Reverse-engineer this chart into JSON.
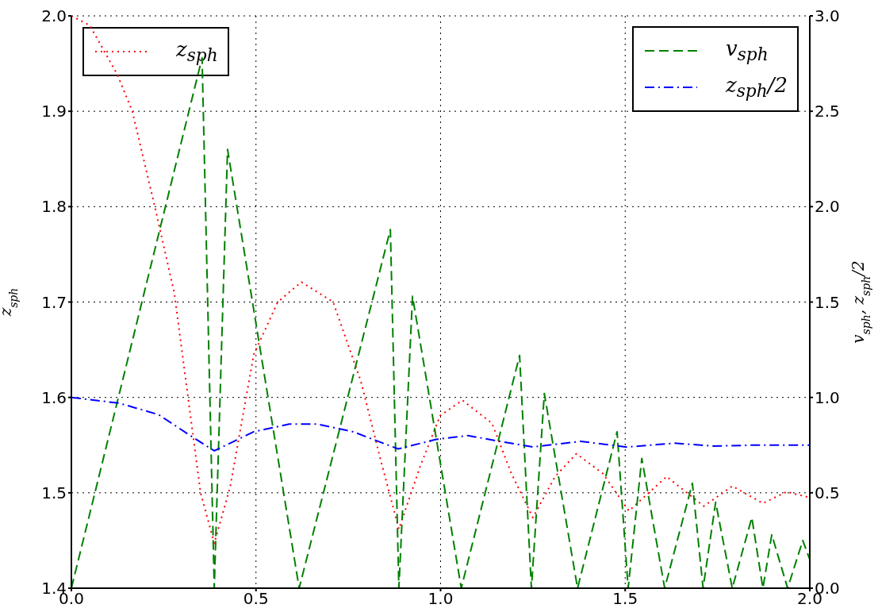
{
  "chart_data": {
    "type": "line",
    "ylabel": "z$_{sph}$",
    "y2label": "v$_{sph}$, z$_{sph}$/2",
    "xlim": [
      0,
      2
    ],
    "xticks": [
      {
        "value": 0,
        "label": "0.0"
      },
      0.5,
      {
        "value": 1,
        "label": "1.0"
      },
      1.5,
      {
        "value": 2,
        "label": "2.0"
      }
    ],
    "ylim": [
      1.4,
      2.0
    ],
    "yticks": [
      1.4,
      1.5,
      1.6,
      1.7,
      1.8,
      1.9,
      {
        "value": 2,
        "label": "2.0"
      }
    ],
    "y2lim": [
      0,
      3
    ],
    "y2ticks": [
      {
        "value": 0,
        "label": "0.0"
      },
      0.5,
      {
        "value": 1,
        "label": "1.0"
      },
      1.5,
      {
        "value": 2,
        "label": "2.0"
      },
      2.5,
      {
        "value": 3,
        "label": "3.0"
      }
    ],
    "grid": true,
    "legend": "top",
    "marker": "none",
    "series": [
      {
        "name": "z$_{sph}$",
        "color": "#ff0000",
        "line_style": "dotted",
        "x": [
          0,
          0.05,
          0.125,
          0.165,
          0.226,
          0.279,
          0.316,
          0.35,
          0.387,
          0.43,
          0.494,
          0.559,
          0.623,
          0.709,
          0.784,
          0.838,
          0.887,
          0.945,
          0.999,
          1.059,
          1.139,
          1.192,
          1.25,
          1.31,
          1.368,
          1.44,
          1.51,
          1.612,
          1.713,
          1.79,
          1.873,
          1.937,
          2.0
        ],
        "values": [
          2.0,
          1.99,
          1.938,
          1.9,
          1.8,
          1.709,
          1.6,
          1.5,
          1.447,
          1.506,
          1.645,
          1.7,
          1.721,
          1.7,
          1.617,
          1.534,
          1.462,
          1.528,
          1.581,
          1.597,
          1.573,
          1.52,
          1.474,
          1.517,
          1.541,
          1.52,
          1.481,
          1.517,
          1.486,
          1.507,
          1.489,
          1.501,
          1.495
        ]
      },
      {
        "name": "v$_{sph}$",
        "color": "#008000",
        "line_style": "dashed",
        "axis": "y2",
        "x": [
          0,
          0.354,
          0.387,
          0.423,
          0.617,
          0.864,
          0.887,
          0.924,
          1.056,
          1.214,
          1.246,
          1.281,
          1.371,
          1.478,
          1.508,
          1.545,
          1.607,
          1.682,
          1.711,
          1.745,
          1.79,
          1.843,
          1.873,
          1.897,
          1.94,
          1.981,
          2.0
        ],
        "values": [
          0,
          2.78,
          0,
          2.3,
          0,
          1.88,
          0,
          1.53,
          0,
          1.22,
          0,
          1.02,
          0,
          0.82,
          0,
          0.68,
          0,
          0.55,
          0,
          0.45,
          0,
          0.37,
          0,
          0.28,
          0,
          0.25,
          0.15
        ]
      },
      {
        "name": "z$_{sph}$/2",
        "color": "#0000ff",
        "line_style": "dashdot",
        "axis": "y2",
        "x": [
          0,
          0.129,
          0.236,
          0.322,
          0.387,
          0.494,
          0.59,
          0.666,
          0.763,
          0.885,
          0.988,
          1.074,
          1.16,
          1.25,
          1.379,
          1.504,
          1.633,
          1.74,
          1.848,
          2.0
        ],
        "values": [
          1.0,
          0.97,
          0.91,
          0.8,
          0.72,
          0.82,
          0.86,
          0.86,
          0.82,
          0.73,
          0.78,
          0.8,
          0.77,
          0.74,
          0.77,
          0.74,
          0.76,
          0.745,
          0.75,
          0.75
        ]
      }
    ]
  }
}
